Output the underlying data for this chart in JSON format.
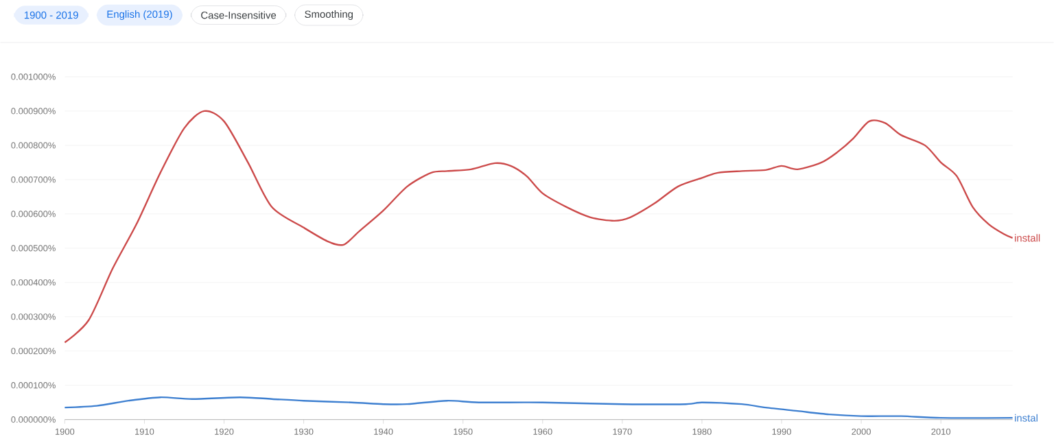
{
  "chart_data": {
    "type": "line",
    "annotations": [
      "1900 - 2019",
      "English (2019)",
      "Case-Insensitive",
      "Smoothing"
    ],
    "xlim": [
      1900,
      2019
    ],
    "ylim": [
      0,
      0.001
    ],
    "xticks": [
      1900,
      1910,
      1920,
      1930,
      1940,
      1950,
      1960,
      1970,
      1980,
      1990,
      2000,
      2010
    ],
    "yticks": [
      {
        "value": 0,
        "label": "0.000000%"
      },
      {
        "value": 0.0001,
        "label": "0.000100%"
      },
      {
        "value": 0.0002,
        "label": "0.000200%"
      },
      {
        "value": 0.0003,
        "label": "0.000300%"
      },
      {
        "value": 0.0004,
        "label": "0.000400%"
      },
      {
        "value": 0.0005,
        "label": "0.000500%"
      },
      {
        "value": 0.0006,
        "label": "0.000600%"
      },
      {
        "value": 0.0007,
        "label": "0.000700%"
      },
      {
        "value": 0.0008,
        "label": "0.000800%"
      },
      {
        "value": 0.0009,
        "label": "0.000900%"
      },
      {
        "value": 0.001,
        "label": "0.001000%"
      }
    ],
    "grid": "y",
    "marker": "none",
    "line_style": "solid",
    "series": [
      {
        "name": "install",
        "color": "#cc4a4a",
        "x": [
          1900,
          1903,
          1906,
          1909,
          1912,
          1915,
          1917.5,
          1920,
          1923,
          1926,
          1930,
          1933,
          1935,
          1937,
          1940,
          1943,
          1946,
          1948,
          1951,
          1954,
          1956,
          1958,
          1960,
          1963,
          1966,
          1969,
          1971,
          1974,
          1977,
          1980,
          1982,
          1985,
          1988,
          1990,
          1992,
          1995,
          1997,
          1999,
          2001,
          2003,
          2005,
          2008,
          2010,
          2012,
          2014,
          2016,
          2018,
          2019
        ],
        "values": [
          0.000225,
          0.00029,
          0.00044,
          0.00057,
          0.00072,
          0.00085,
          0.0009,
          0.00087,
          0.00075,
          0.00062,
          0.00056,
          0.00052,
          0.00051,
          0.00055,
          0.00061,
          0.00068,
          0.00072,
          0.000725,
          0.00073,
          0.000748,
          0.00074,
          0.00071,
          0.00066,
          0.00062,
          0.00059,
          0.00058,
          0.00059,
          0.00063,
          0.00068,
          0.000705,
          0.00072,
          0.000725,
          0.000728,
          0.00074,
          0.00073,
          0.00075,
          0.00078,
          0.00082,
          0.00087,
          0.000865,
          0.00083,
          0.0008,
          0.00075,
          0.00071,
          0.00062,
          0.00057,
          0.00054,
          0.00053
        ]
      },
      {
        "name": "instal",
        "color": "#3d7fd0",
        "x": [
          1900,
          1904,
          1908,
          1912,
          1916,
          1922,
          1926,
          1930,
          1936,
          1940,
          1943,
          1948,
          1952,
          1960,
          1970,
          1978,
          1980,
          1985,
          1988,
          1992,
          1996,
          2000,
          2005,
          2010,
          2019
        ],
        "values": [
          3.5e-05,
          4e-05,
          5.5e-05,
          6.5e-05,
          6e-05,
          6.5e-05,
          6e-05,
          5.5e-05,
          5e-05,
          4.5e-05,
          4.5e-05,
          5.5e-05,
          5e-05,
          5e-05,
          4.5e-05,
          4.5e-05,
          5e-05,
          4.5e-05,
          3.5e-05,
          2.5e-05,
          1.5e-05,
          1e-05,
          1e-05,
          5e-06,
          5e-06
        ]
      }
    ]
  }
}
